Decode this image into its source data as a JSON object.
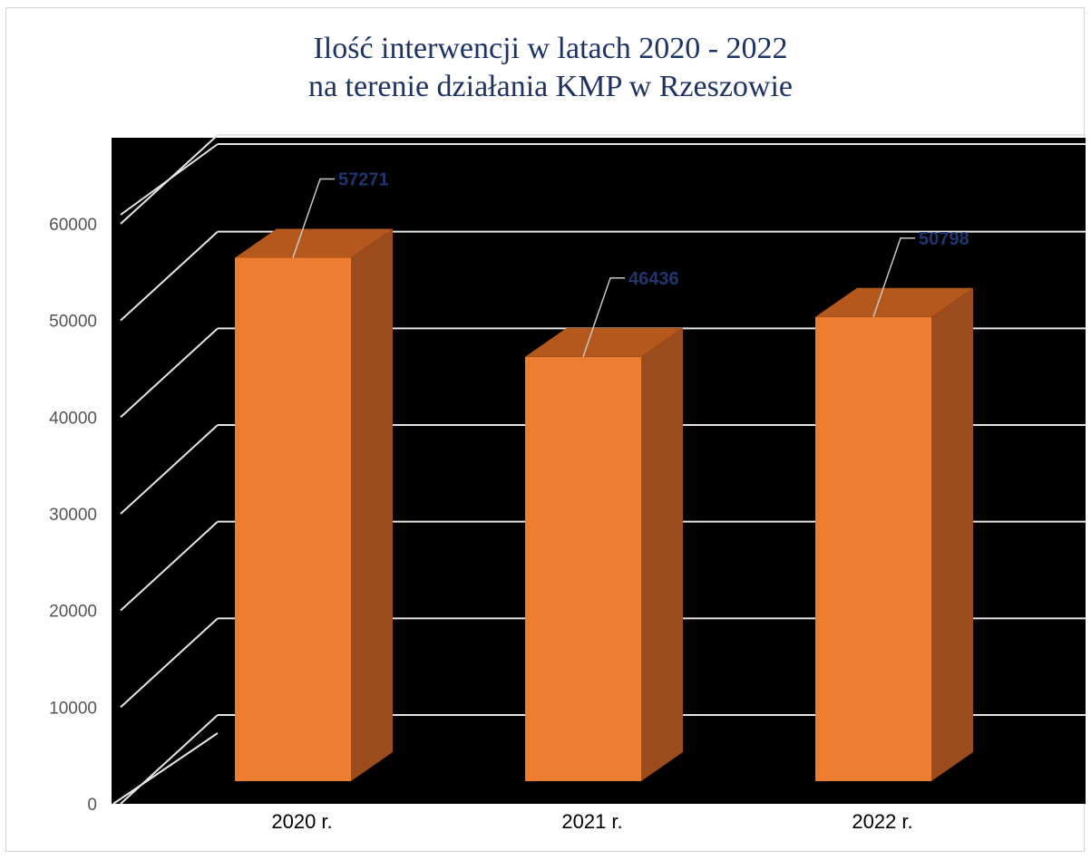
{
  "chart_data": {
    "type": "bar",
    "title_lines": [
      "Ilość interwencji w latach 2020 - 2022",
      "na terenie działania KMP w Rzeszowie"
    ],
    "categories": [
      "2020 r.",
      "2021 r.",
      "2022 r."
    ],
    "values": [
      57271,
      46436,
      50798
    ],
    "data_labels": [
      "57271",
      "46436",
      "50798"
    ],
    "ylim": [
      0,
      60000
    ],
    "y_ticks": [
      "0",
      "10000",
      "20000",
      "30000",
      "40000",
      "50000",
      "60000"
    ],
    "grid": true,
    "legend": "none",
    "style": "3d-column",
    "colors": {
      "plot_background": "#000000",
      "bar_front": "#ed7d31",
      "bar_top": "#b5581e",
      "bar_side": "#9c4c1c",
      "gridline": "#e6e6e6",
      "data_label": "#1f3670",
      "title": "#1f3264"
    }
  }
}
